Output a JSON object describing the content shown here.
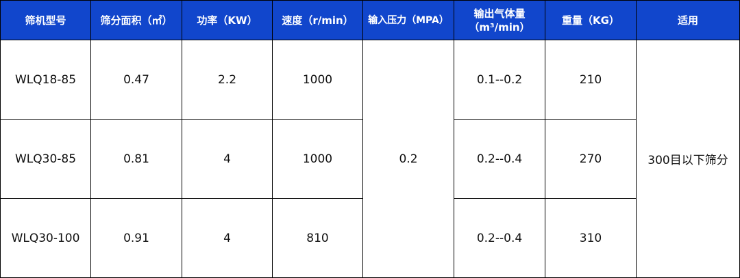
{
  "header_color": "#1146cc",
  "headers": [
    "筛机型号",
    "筛分面积（㎡）",
    "功率（KW）",
    "速度（r/min）",
    "输入压力（MPA）",
    "输出气体量",
    "（m³/min）",
    "重量（KG）",
    "适用"
  ],
  "rows": [
    {
      "model": "WLQ18-85",
      "area": "0.47",
      "power": "2.2",
      "speed": "1000",
      "gas": "0.1--0.2",
      "weight": "210"
    },
    {
      "model": "WLQ30-85",
      "area": "0.81",
      "power": "4",
      "speed": "1000",
      "gas": "0.2--0.4",
      "weight": "270"
    },
    {
      "model": "WLQ30-100",
      "area": "0.91",
      "power": "4",
      "speed": "810",
      "gas": "0.2--0.4",
      "weight": "310"
    }
  ],
  "pressure": "0.2",
  "usage": "300目以下筛分"
}
